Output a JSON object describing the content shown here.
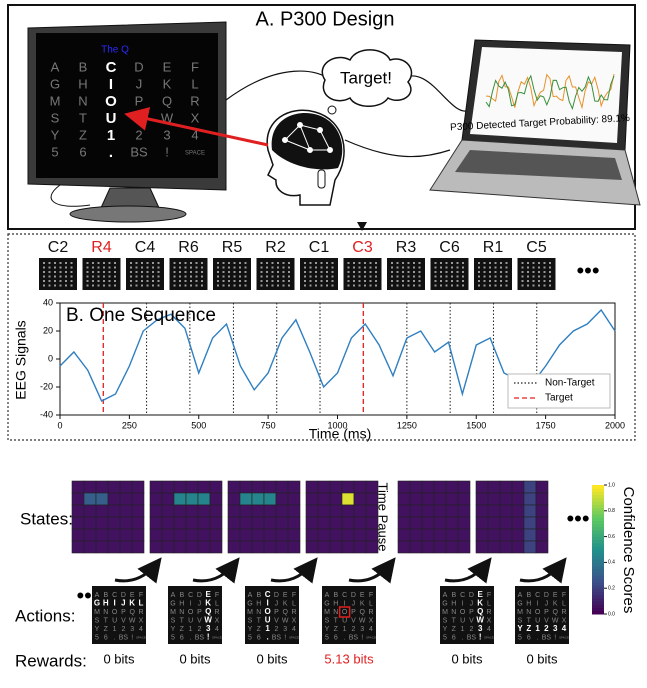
{
  "panel_a": {
    "title": "A. P300 Design",
    "screen_caption": "The Q",
    "grid": [
      [
        "A",
        "B",
        "C",
        "D",
        "E",
        "F"
      ],
      [
        "G",
        "H",
        "I",
        "J",
        "K",
        "L"
      ],
      [
        "M",
        "N",
        "O",
        "P",
        "Q",
        "R"
      ],
      [
        "S",
        "T",
        "U",
        "V",
        "W",
        "X"
      ],
      [
        "Y",
        "Z",
        "1",
        "2",
        "3",
        "4"
      ],
      [
        "5",
        "6",
        ".",
        "BS",
        "!",
        "SPACE"
      ]
    ],
    "highlight_col": 2,
    "thought": "Target!",
    "laptop_text": "P300 Detected Target Probability: 89.1%"
  },
  "panel_b": {
    "flashes": [
      "C2",
      "R4",
      "C4",
      "R6",
      "R5",
      "R2",
      "C1",
      "C3",
      "R3",
      "C6",
      "R1",
      "C5"
    ],
    "target_flashes": [
      "R4",
      "C3"
    ],
    "more": "•••",
    "chart_data": {
      "type": "line",
      "title": "B. One Sequence",
      "x_label": "Time (ms)",
      "y_label": "EEG Signals",
      "xlim": [
        0,
        2000
      ],
      "ylim": [
        -40,
        40
      ],
      "xticks": [
        0,
        250,
        500,
        750,
        1000,
        1250,
        1500,
        1750,
        2000
      ],
      "yticks": [
        -40,
        -20,
        0,
        20,
        40
      ],
      "x": [
        0,
        50,
        100,
        150,
        200,
        250,
        300,
        350,
        400,
        450,
        500,
        550,
        600,
        650,
        700,
        750,
        800,
        850,
        900,
        950,
        1000,
        1050,
        1100,
        1150,
        1200,
        1250,
        1300,
        1350,
        1400,
        1450,
        1500,
        1550,
        1600,
        1650,
        1700,
        1750,
        1800,
        1850,
        1900,
        1950,
        2000
      ],
      "series": [
        {
          "name": "EEG",
          "color": "#2f7fc1",
          "values": [
            -5,
            5,
            -8,
            -30,
            -25,
            -5,
            20,
            28,
            32,
            22,
            -10,
            15,
            25,
            -5,
            -22,
            -10,
            15,
            28,
            5,
            -20,
            -10,
            15,
            25,
            10,
            -12,
            15,
            20,
            5,
            12,
            -25,
            10,
            15,
            -10,
            -15,
            -18,
            -5,
            10,
            20,
            25,
            35,
            20
          ]
        }
      ],
      "non_target_lines": [
        312,
        468,
        625,
        781,
        937,
        1250,
        1406,
        1562,
        1718
      ],
      "target_lines": [
        156,
        1093
      ],
      "legend": [
        {
          "name": "Non-Target",
          "color": "#222",
          "style": "dotted"
        },
        {
          "name": "Target",
          "color": "#e02020",
          "style": "dashed"
        }
      ]
    }
  },
  "panel_c": {
    "states_label": "States:",
    "actions_label": "Actions:",
    "rewards_label": "Rewards:",
    "pause": "Time Pause",
    "more": "•••",
    "colorbar_label": "Confidence Scores",
    "colorbar_ticks": [
      {
        "value": 0,
        "label": "0.0"
      },
      {
        "value": 0.2,
        "label": "0.2"
      },
      {
        "value": 0.4,
        "label": "0.4"
      },
      {
        "value": 0.6,
        "label": "0.6"
      },
      {
        "value": 0.8,
        "label": "0.8"
      },
      {
        "value": 1,
        "label": "1.0"
      }
    ],
    "states": [
      [
        [
          0.05,
          0.05,
          0.05,
          0.05,
          0.05,
          0.05
        ],
        [
          0.05,
          0.3,
          0.3,
          0.05,
          0.05,
          0.05
        ],
        [
          0.05,
          0.05,
          0.05,
          0.05,
          0.05,
          0.05
        ],
        [
          0.05,
          0.05,
          0.05,
          0.05,
          0.05,
          0.05
        ],
        [
          0.05,
          0.05,
          0.05,
          0.05,
          0.05,
          0.05
        ],
        [
          0.05,
          0.05,
          0.05,
          0.05,
          0.05,
          0.05
        ]
      ],
      [
        [
          0.05,
          0.05,
          0.05,
          0.05,
          0.05,
          0.05
        ],
        [
          0.05,
          0.05,
          0.45,
          0.45,
          0.45,
          0.05
        ],
        [
          0.05,
          0.05,
          0.05,
          0.05,
          0.05,
          0.05
        ],
        [
          0.05,
          0.05,
          0.05,
          0.05,
          0.05,
          0.05
        ],
        [
          0.05,
          0.05,
          0.05,
          0.05,
          0.05,
          0.05
        ],
        [
          0.05,
          0.05,
          0.05,
          0.05,
          0.05,
          0.05
        ]
      ],
      [
        [
          0.05,
          0.05,
          0.05,
          0.05,
          0.05,
          0.05
        ],
        [
          0.05,
          0.45,
          0.45,
          0.45,
          0.05,
          0.05
        ],
        [
          0.05,
          0.05,
          0.05,
          0.05,
          0.05,
          0.05
        ],
        [
          0.05,
          0.05,
          0.05,
          0.05,
          0.05,
          0.05
        ],
        [
          0.05,
          0.05,
          0.05,
          0.05,
          0.05,
          0.05
        ],
        [
          0.05,
          0.05,
          0.05,
          0.05,
          0.05,
          0.05
        ]
      ],
      [
        [
          0.05,
          0.05,
          0.05,
          0.05,
          0.05,
          0.05
        ],
        [
          0.05,
          0.05,
          0.05,
          0.95,
          0.05,
          0.05
        ],
        [
          0.05,
          0.05,
          0.05,
          0.05,
          0.05,
          0.05
        ],
        [
          0.05,
          0.05,
          0.05,
          0.05,
          0.05,
          0.05
        ],
        [
          0.05,
          0.05,
          0.05,
          0.05,
          0.05,
          0.05
        ],
        [
          0.05,
          0.05,
          0.05,
          0.05,
          0.05,
          0.05
        ]
      ],
      [
        [
          0.05,
          0.05,
          0.05,
          0.05,
          0.05,
          0.05
        ],
        [
          0.05,
          0.05,
          0.05,
          0.05,
          0.05,
          0.05
        ],
        [
          0.05,
          0.05,
          0.05,
          0.05,
          0.05,
          0.05
        ],
        [
          0.05,
          0.05,
          0.05,
          0.05,
          0.05,
          0.05
        ],
        [
          0.05,
          0.05,
          0.05,
          0.05,
          0.05,
          0.05
        ],
        [
          0.05,
          0.05,
          0.05,
          0.05,
          0.05,
          0.05
        ]
      ],
      [
        [
          0.05,
          0.05,
          0.05,
          0.05,
          0.2,
          0.05
        ],
        [
          0.05,
          0.05,
          0.05,
          0.05,
          0.2,
          0.05
        ],
        [
          0.05,
          0.05,
          0.05,
          0.05,
          0.2,
          0.05
        ],
        [
          0.05,
          0.05,
          0.05,
          0.05,
          0.2,
          0.05
        ],
        [
          0.05,
          0.05,
          0.05,
          0.05,
          0.2,
          0.05
        ],
        [
          0.05,
          0.05,
          0.05,
          0.05,
          0.2,
          0.05
        ]
      ]
    ],
    "actions": [
      {
        "row": 1
      },
      {
        "col": 4
      },
      {
        "col": 2
      },
      {
        "cell": [
          2,
          2
        ]
      },
      {
        "col": 4
      },
      {
        "row": 4
      }
    ],
    "rewards": [
      {
        "text": "0 bits",
        "color": "#000"
      },
      {
        "text": "0 bits",
        "color": "#000"
      },
      {
        "text": "0 bits",
        "color": "#000"
      },
      {
        "text": "5.13 bits",
        "color": "#e02020"
      },
      {
        "text": "0 bits",
        "color": "#000"
      },
      {
        "text": "0 bits",
        "color": "#000"
      }
    ]
  }
}
